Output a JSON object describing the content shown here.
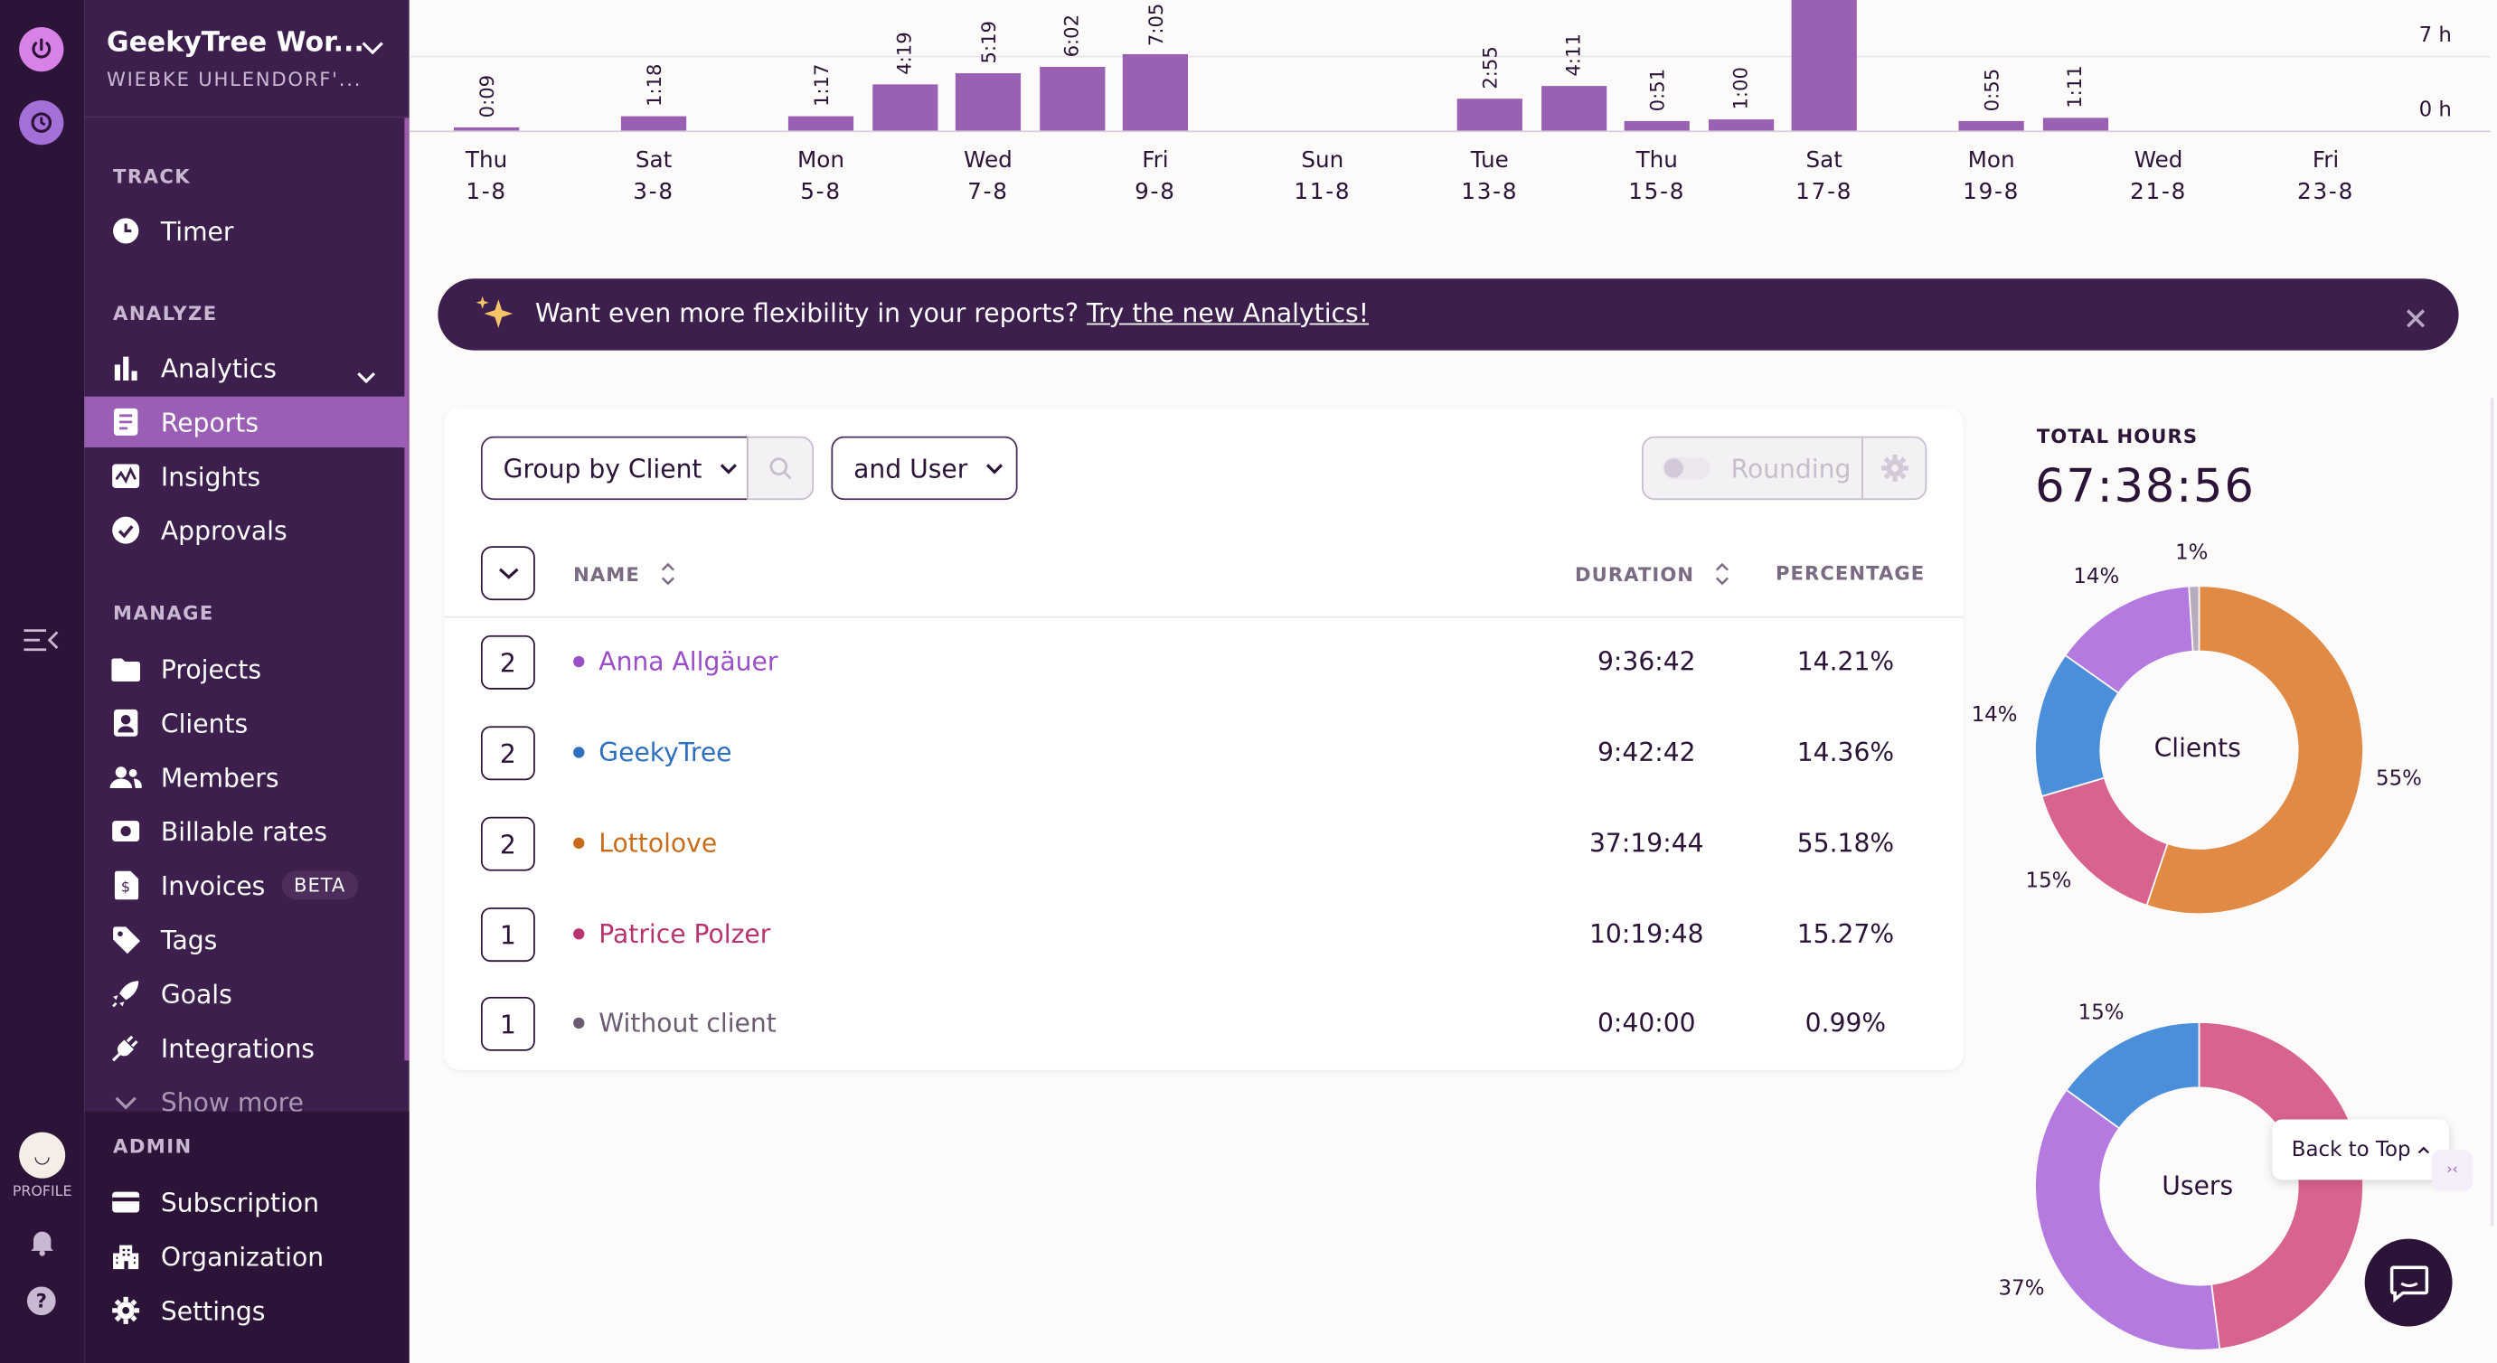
{
  "workspace": {
    "name": "GeekyTree Wor...",
    "owner": "WIEBKE UHLENDORF'..."
  },
  "rail": {
    "profile_label": "PROFILE"
  },
  "sidebar": {
    "track": {
      "title": "TRACK",
      "items": [
        {
          "label": "Timer",
          "icon": "clock-icon"
        }
      ]
    },
    "analyze": {
      "title": "ANALYZE",
      "items": [
        {
          "label": "Analytics",
          "icon": "bar-chart-icon"
        },
        {
          "label": "Reports",
          "icon": "report-icon"
        },
        {
          "label": "Insights",
          "icon": "insights-icon"
        },
        {
          "label": "Approvals",
          "icon": "check-circle-icon"
        }
      ]
    },
    "manage": {
      "title": "MANAGE",
      "items": [
        {
          "label": "Projects",
          "icon": "folder-icon"
        },
        {
          "label": "Clients",
          "icon": "client-icon"
        },
        {
          "label": "Members",
          "icon": "members-icon"
        },
        {
          "label": "Billable rates",
          "icon": "money-icon"
        },
        {
          "label": "Invoices",
          "icon": "invoice-icon",
          "badge": "BETA"
        },
        {
          "label": "Tags",
          "icon": "tag-icon"
        },
        {
          "label": "Goals",
          "icon": "rocket-icon"
        },
        {
          "label": "Integrations",
          "icon": "plug-icon"
        }
      ],
      "show_more": "Show more"
    },
    "admin": {
      "title": "ADMIN",
      "items": [
        {
          "label": "Subscription",
          "icon": "card-icon"
        },
        {
          "label": "Organization",
          "icon": "building-icon"
        },
        {
          "label": "Settings",
          "icon": "gear-icon"
        }
      ]
    }
  },
  "chart_data": {
    "type": "bar",
    "y_ticks": [
      "7 h",
      "0 h"
    ],
    "days": [
      {
        "day": "Thu",
        "date": "1-8",
        "value": "0:09",
        "hours": 0.15
      },
      {
        "day": "Fri",
        "date": "2-8",
        "value": "",
        "hours": 0
      },
      {
        "day": "Sat",
        "date": "3-8",
        "value": "1:18",
        "hours": 1.3
      },
      {
        "day": "Sun",
        "date": "4-8",
        "value": "",
        "hours": 0
      },
      {
        "day": "Mon",
        "date": "5-8",
        "value": "1:17",
        "hours": 1.28
      },
      {
        "day": "Tue",
        "date": "6-8",
        "value": "4:19",
        "hours": 4.32
      },
      {
        "day": "Wed",
        "date": "7-8",
        "value": "5:19",
        "hours": 5.32
      },
      {
        "day": "Thu",
        "date": "8-8",
        "value": "6:02",
        "hours": 6.03
      },
      {
        "day": "Fri",
        "date": "9-8",
        "value": "7:05",
        "hours": 7.08
      },
      {
        "day": "Sat",
        "date": "10-8",
        "value": "",
        "hours": 0
      },
      {
        "day": "Sun",
        "date": "11-8",
        "value": "",
        "hours": 0
      },
      {
        "day": "Mon",
        "date": "12-8",
        "value": "",
        "hours": 0
      },
      {
        "day": "Tue",
        "date": "13-8",
        "value": "2:55",
        "hours": 2.92
      },
      {
        "day": "Wed",
        "date": "14-8",
        "value": "4:11",
        "hours": 4.18
      },
      {
        "day": "Thu",
        "date": "15-8",
        "value": "0:51",
        "hours": 0.85
      },
      {
        "day": "Fri",
        "date": "16-8",
        "value": "1:00",
        "hours": 1.0
      },
      {
        "day": "Sat",
        "date": "17-8",
        "value": "",
        "hours": 14
      },
      {
        "day": "Sun",
        "date": "18-8",
        "value": "",
        "hours": 0
      },
      {
        "day": "Mon",
        "date": "19-8",
        "value": "0:55",
        "hours": 0.92
      },
      {
        "day": "Tue",
        "date": "20-8",
        "value": "1:11",
        "hours": 1.18
      },
      {
        "day": "Wed",
        "date": "21-8",
        "value": "",
        "hours": 0
      },
      {
        "day": "Thu",
        "date": "22-8",
        "value": "",
        "hours": 0
      },
      {
        "day": "Fri",
        "date": "23-8",
        "value": "",
        "hours": 0
      }
    ],
    "x_labels": [
      {
        "day": "Thu",
        "date": "1-8"
      },
      {
        "day": "Sat",
        "date": "3-8"
      },
      {
        "day": "Mon",
        "date": "5-8"
      },
      {
        "day": "Wed",
        "date": "7-8"
      },
      {
        "day": "Fri",
        "date": "9-8"
      },
      {
        "day": "Sun",
        "date": "11-8"
      },
      {
        "day": "Tue",
        "date": "13-8"
      },
      {
        "day": "Thu",
        "date": "15-8"
      },
      {
        "day": "Sat",
        "date": "17-8"
      },
      {
        "day": "Mon",
        "date": "19-8"
      },
      {
        "day": "Wed",
        "date": "21-8"
      },
      {
        "day": "Fri",
        "date": "23-8"
      }
    ]
  },
  "banner": {
    "text": "Want even more flexibility in your reports?",
    "link": "Try the new Analytics!"
  },
  "controls": {
    "group_by": "Group by Client",
    "sub_group": "and User",
    "rounding": "Rounding"
  },
  "table": {
    "headers": {
      "name": "NAME",
      "duration": "DURATION",
      "percentage": "PERCENTAGE"
    },
    "rows": [
      {
        "count": "2",
        "name": "Anna Allgäuer",
        "duration": "9:36:42",
        "percentage": "14.21%",
        "color": "#9a4fc6"
      },
      {
        "count": "2",
        "name": "GeekyTree",
        "duration": "9:42:42",
        "percentage": "14.36%",
        "color": "#2f6fbf"
      },
      {
        "count": "2",
        "name": "Lottolove",
        "duration": "37:19:44",
        "percentage": "55.18%",
        "color": "#c86c1c"
      },
      {
        "count": "1",
        "name": "Patrice Polzer",
        "duration": "10:19:48",
        "percentage": "15.27%",
        "color": "#b8346e"
      },
      {
        "count": "1",
        "name": "Without client",
        "duration": "0:40:00",
        "percentage": "0.99%",
        "color": "#6b5b73"
      }
    ]
  },
  "totals": {
    "label": "TOTAL HOURS",
    "value": "67:38:56"
  },
  "donuts": {
    "clients": {
      "title": "Clients",
      "slices": [
        {
          "name": "Lottolove",
          "percent": 55.18,
          "label": "55%",
          "color": "#e08a45"
        },
        {
          "name": "Patrice Polzer",
          "percent": 15.27,
          "label": "15%",
          "color": "#d9638f"
        },
        {
          "name": "GeekyTree",
          "percent": 14.36,
          "label": "14%",
          "color": "#4b8fdb"
        },
        {
          "name": "Anna Allgäuer",
          "percent": 14.21,
          "label": "14%",
          "color": "#b57ae0"
        },
        {
          "name": "Without client",
          "percent": 0.99,
          "label": "1%",
          "color": "#b7abbd"
        }
      ]
    },
    "users": {
      "title": "Users",
      "labels": [
        "15%",
        "37%"
      ],
      "slices": [
        {
          "percent": 48,
          "color": "#d9638f"
        },
        {
          "percent": 37,
          "color": "#b57ae0"
        },
        {
          "percent": 15,
          "color": "#4b8fdb"
        }
      ]
    }
  },
  "back_to_top": "Back to Top"
}
